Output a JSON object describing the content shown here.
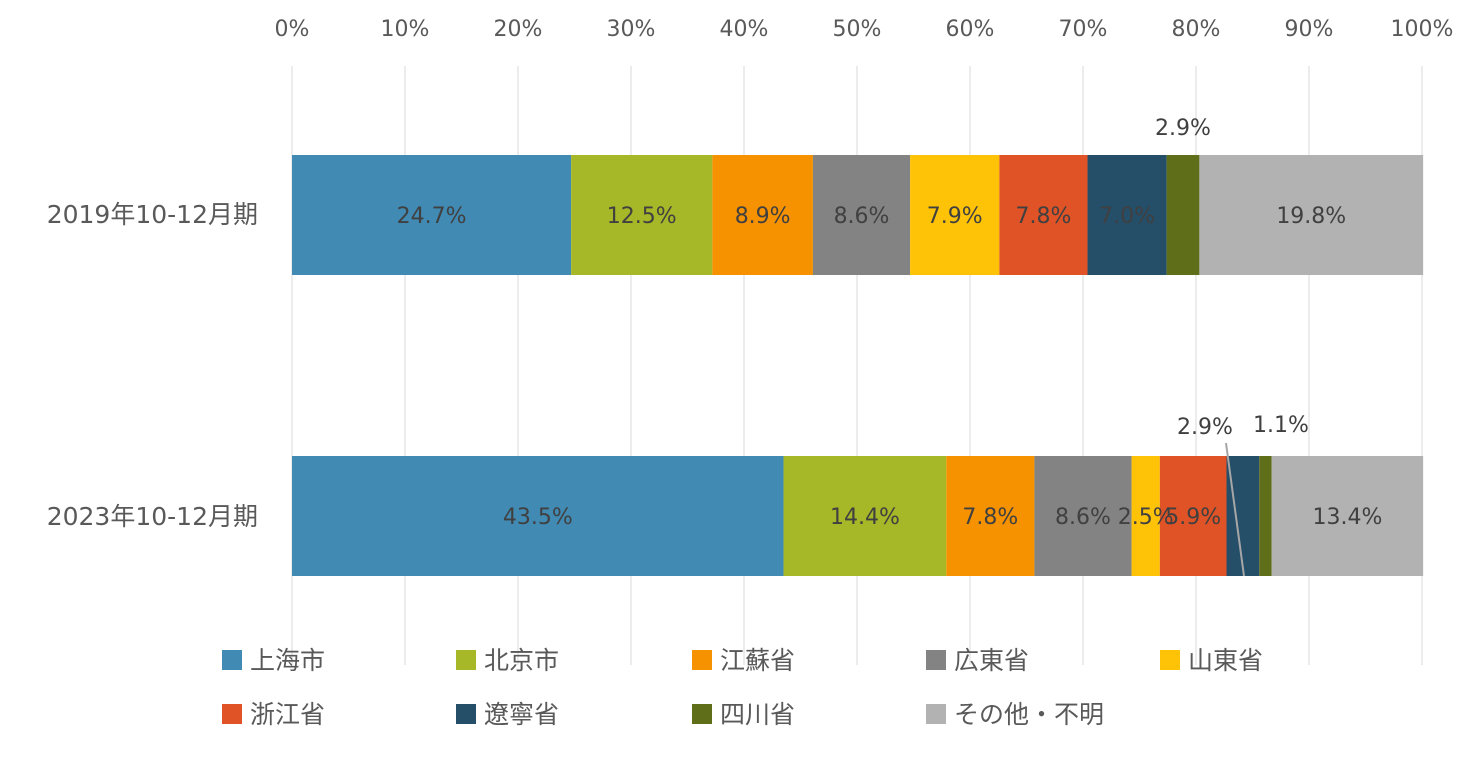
{
  "chart_data": {
    "type": "bar",
    "orientation": "horizontal",
    "stacked": "percent",
    "xlim": [
      0,
      100
    ],
    "x_ticks": [
      "0%",
      "10%",
      "20%",
      "30%",
      "40%",
      "50%",
      "60%",
      "70%",
      "80%",
      "90%",
      "100%"
    ],
    "categories": [
      "2019年10-12月期",
      "2023年10-12月期"
    ],
    "grid": true,
    "legend_position": "bottom",
    "series": [
      {
        "name": "上海市",
        "color": "#418AB3",
        "values": [
          24.7,
          43.5
        ],
        "labels": [
          "24.7%",
          "43.5%"
        ]
      },
      {
        "name": "北京市",
        "color": "#A6B727",
        "values": [
          12.5,
          14.4
        ],
        "labels": [
          "12.5%",
          "14.4%"
        ]
      },
      {
        "name": "江蘇省",
        "color": "#F69200",
        "values": [
          8.9,
          7.8
        ],
        "labels": [
          "8.9%",
          "7.8%"
        ]
      },
      {
        "name": "広東省",
        "color": "#838383",
        "values": [
          8.6,
          8.6
        ],
        "labels": [
          "8.6%",
          "8.6%"
        ]
      },
      {
        "name": "山東省",
        "color": "#FEC306",
        "values": [
          7.9,
          2.5
        ],
        "labels": [
          "7.9%",
          "2.5%"
        ]
      },
      {
        "name": "浙江省",
        "color": "#DF5327",
        "values": [
          7.8,
          5.9
        ],
        "labels": [
          "7.8%",
          "5.9%"
        ]
      },
      {
        "name": "遼寧省",
        "color": "#254E69",
        "values": [
          7.0,
          2.9
        ],
        "labels": [
          "7.0%",
          "2.9%"
        ]
      },
      {
        "name": "四川省",
        "color": "#5F6E19",
        "values": [
          2.9,
          1.1
        ],
        "labels": [
          "2.9%",
          "1.1%"
        ]
      },
      {
        "name": "その他・不明",
        "color": "#B2B2B2",
        "values": [
          19.8,
          13.4
        ],
        "labels": [
          "19.8%",
          "13.4%"
        ]
      }
    ]
  }
}
